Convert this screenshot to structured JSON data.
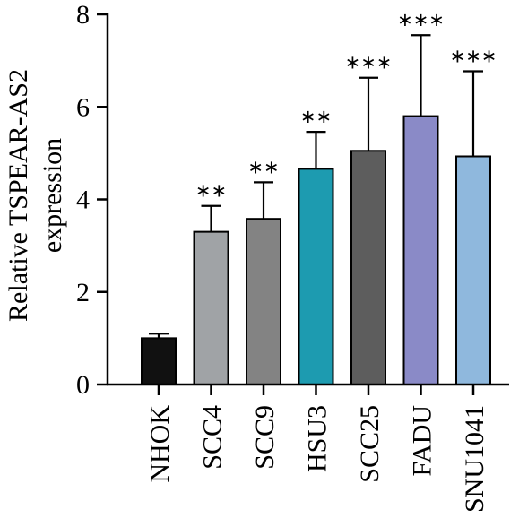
{
  "chart_data": {
    "type": "bar",
    "ylabel_lines": [
      "Relative TSPEAR-AS2",
      "expression"
    ],
    "xlabel": "",
    "ylim": [
      0,
      8
    ],
    "yticks": [
      0,
      2,
      4,
      6,
      8
    ],
    "categories": [
      "NHOK",
      "SCC4",
      "SCC9",
      "HSU3",
      "SCC25",
      "FADU",
      "SNU1041"
    ],
    "values": [
      1.0,
      3.3,
      3.58,
      4.66,
      5.05,
      5.8,
      4.93
    ],
    "error_upper": [
      1.1,
      3.86,
      4.37,
      5.46,
      6.63,
      7.55,
      6.77
    ],
    "significance": [
      "",
      "**",
      "**",
      "**",
      "***",
      "***",
      "***"
    ],
    "colors": [
      "#111111",
      "#a0a3a6",
      "#838383",
      "#1d9bb0",
      "#5d5d5d",
      "#8a8ac7",
      "#8fb8dd"
    ],
    "grid": false,
    "legend": false
  }
}
